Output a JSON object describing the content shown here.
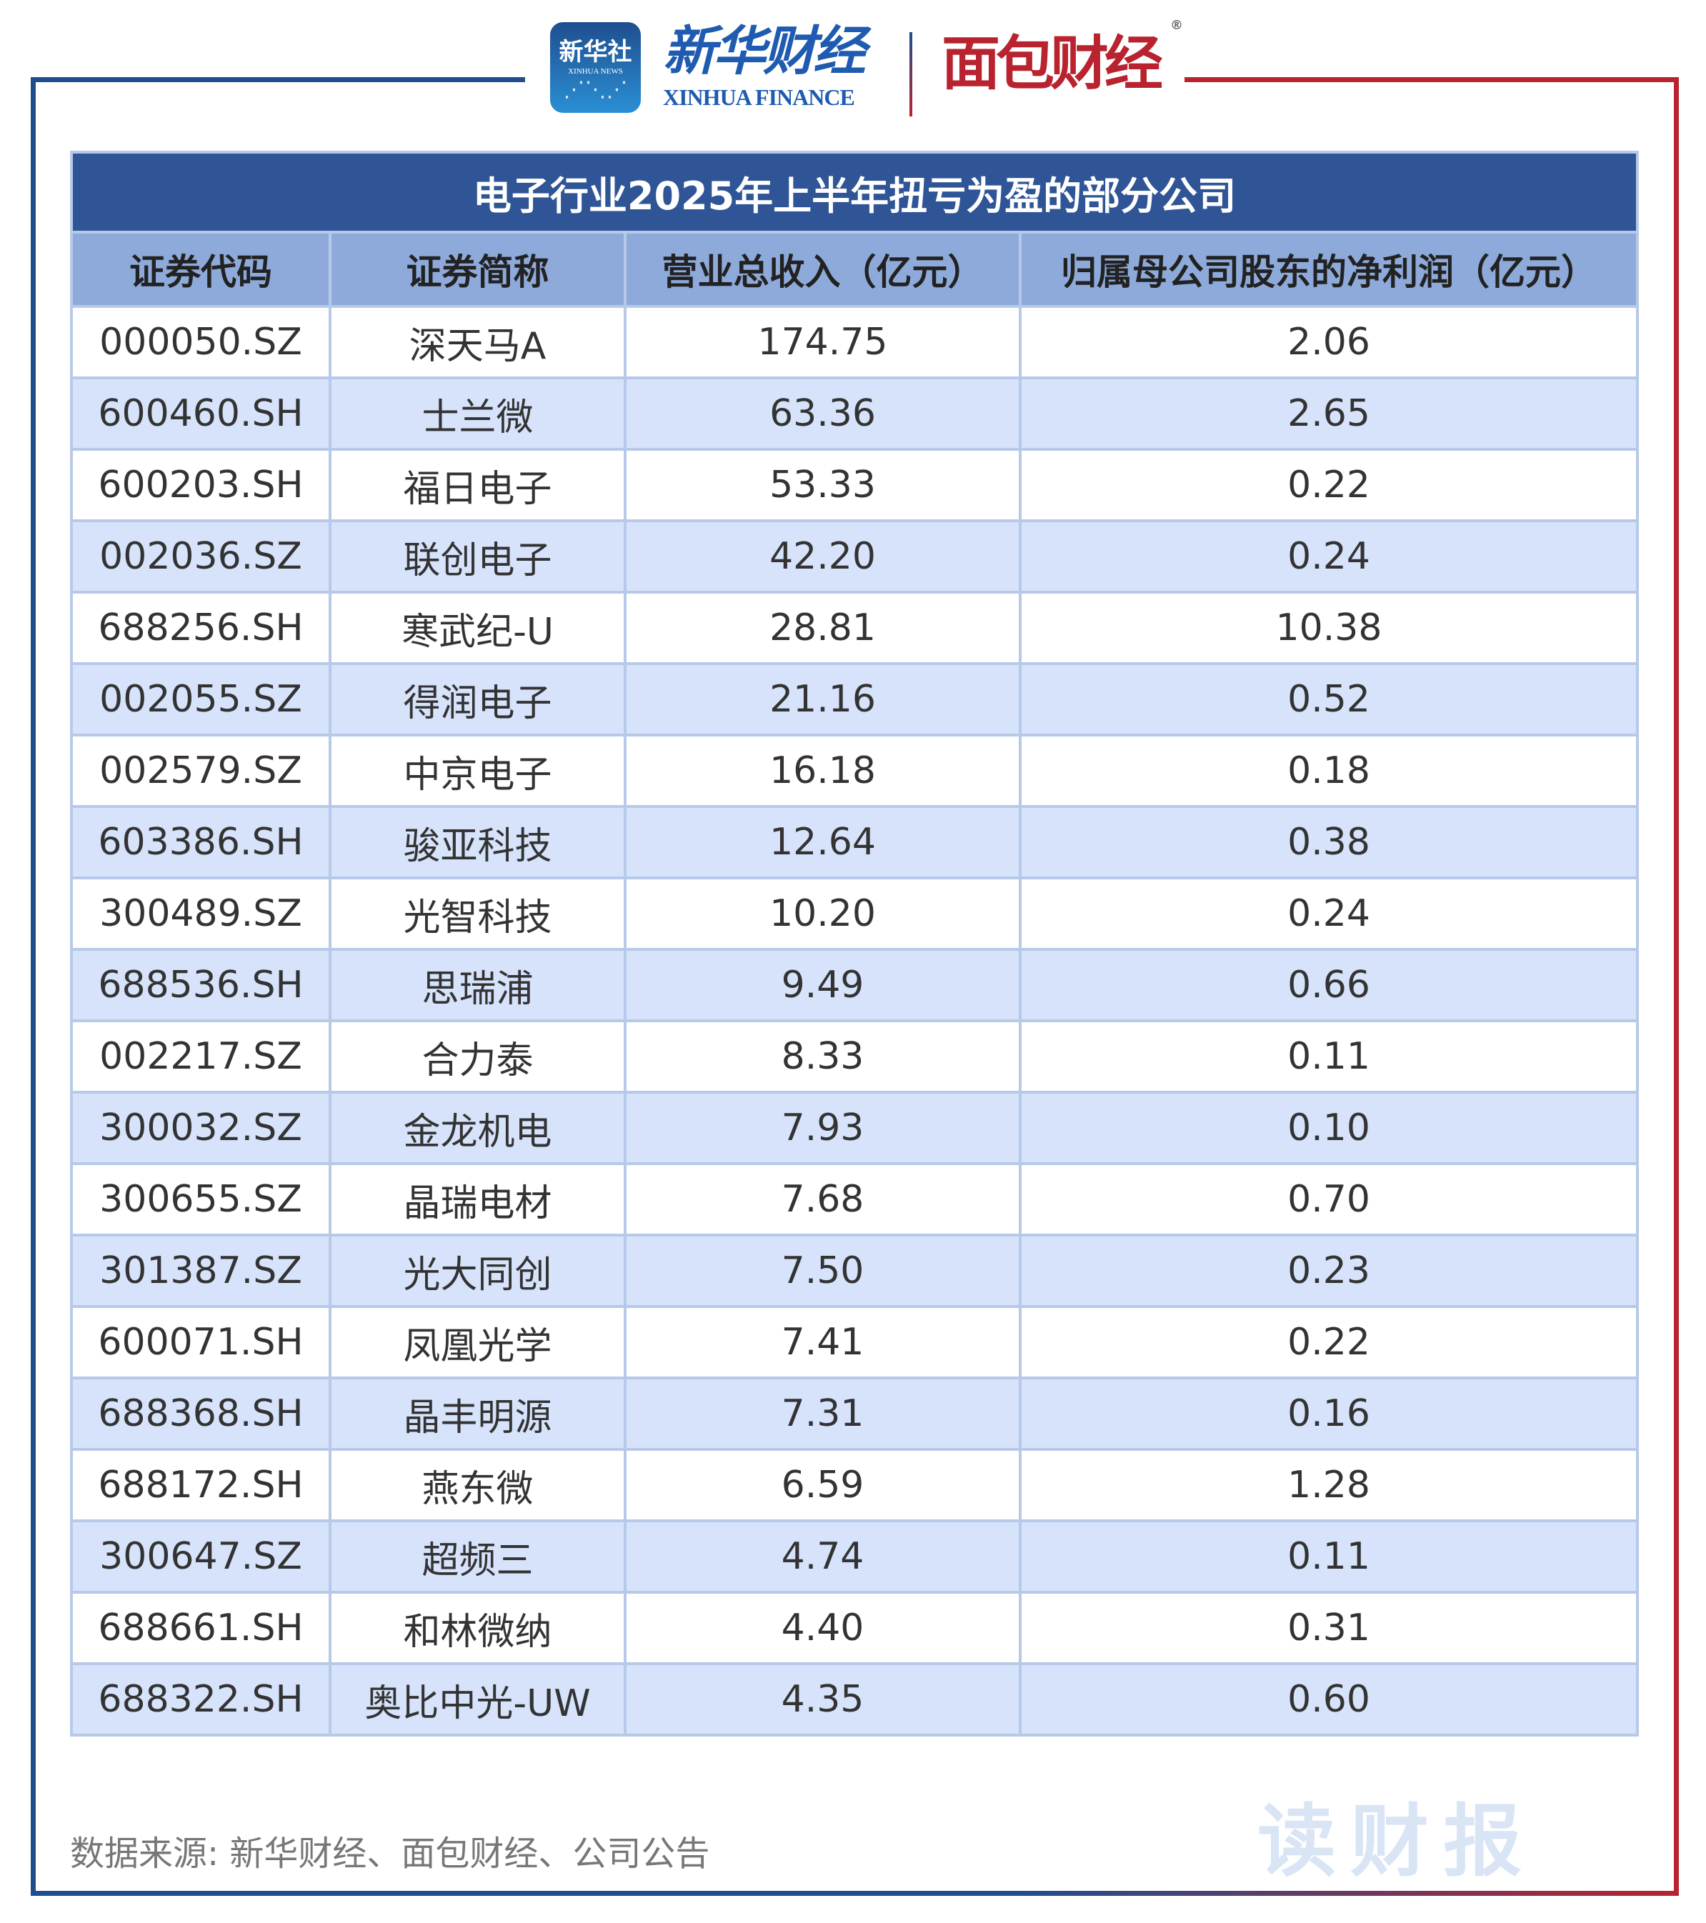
{
  "logos": {
    "xinhua_news": {
      "cn": "新华社",
      "en": "XINHUA NEWS"
    },
    "xinhua_finance": {
      "cn": "新华财经",
      "en": "XINHUA FINANCE"
    },
    "mianbao": {
      "cn": "面包财经",
      "mark": "®"
    }
  },
  "colors": {
    "brand_blue": "#1f4e8f",
    "brand_red": "#b8232f",
    "title_bg": "#2f5597",
    "header_bg": "#8eaadb",
    "stripe": "#d6e3fb"
  },
  "table": {
    "title": "电子行业2025年上半年扭亏为盈的部分公司",
    "columns": [
      "证券代码",
      "证券简称",
      "营业总收入（亿元）",
      "归属母公司股东的净利润（亿元）"
    ],
    "rows": [
      [
        "000050.SZ",
        "深天马A",
        "174.75",
        "2.06"
      ],
      [
        "600460.SH",
        "士兰微",
        "63.36",
        "2.65"
      ],
      [
        "600203.SH",
        "福日电子",
        "53.33",
        "0.22"
      ],
      [
        "002036.SZ",
        "联创电子",
        "42.20",
        "0.24"
      ],
      [
        "688256.SH",
        "寒武纪-U",
        "28.81",
        "10.38"
      ],
      [
        "002055.SZ",
        "得润电子",
        "21.16",
        "0.52"
      ],
      [
        "002579.SZ",
        "中京电子",
        "16.18",
        "0.18"
      ],
      [
        "603386.SH",
        "骏亚科技",
        "12.64",
        "0.38"
      ],
      [
        "300489.SZ",
        "光智科技",
        "10.20",
        "0.24"
      ],
      [
        "688536.SH",
        "思瑞浦",
        "9.49",
        "0.66"
      ],
      [
        "002217.SZ",
        "合力泰",
        "8.33",
        "0.11"
      ],
      [
        "300032.SZ",
        "金龙机电",
        "7.93",
        "0.10"
      ],
      [
        "300655.SZ",
        "晶瑞电材",
        "7.68",
        "0.70"
      ],
      [
        "301387.SZ",
        "光大同创",
        "7.50",
        "0.23"
      ],
      [
        "600071.SH",
        "凤凰光学",
        "7.41",
        "0.22"
      ],
      [
        "688368.SH",
        "晶丰明源",
        "7.31",
        "0.16"
      ],
      [
        "688172.SH",
        "燕东微",
        "6.59",
        "1.28"
      ],
      [
        "300647.SZ",
        "超频三",
        "4.74",
        "0.11"
      ],
      [
        "688661.SH",
        "和林微纳",
        "4.40",
        "0.31"
      ],
      [
        "688322.SH",
        "奥比中光-UW",
        "4.35",
        "0.60"
      ]
    ]
  },
  "watermark": "读财报",
  "footer": {
    "source": "数据来源: 新华财经、面包财经、公司公告"
  }
}
